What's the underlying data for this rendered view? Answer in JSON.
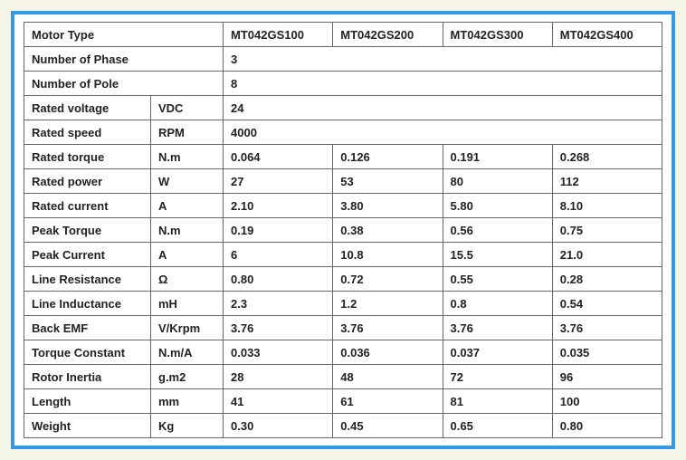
{
  "headers": {
    "motor_type": "Motor Type",
    "models": [
      "MT042GS100",
      "MT042GS200",
      "MT042GS300",
      "MT042GS400"
    ]
  },
  "rows": [
    {
      "label": "Number of Phase",
      "unit": "",
      "unit_merged": true,
      "span_all": true,
      "value": "3"
    },
    {
      "label": "Number of Pole",
      "unit": "",
      "unit_merged": true,
      "span_all": true,
      "value": "8"
    },
    {
      "label": "Rated voltage",
      "unit": "VDC",
      "span_all": true,
      "value": "24"
    },
    {
      "label": "Rated speed",
      "unit": "RPM",
      "span_all": true,
      "value": "4000"
    },
    {
      "label": "Rated torque",
      "unit": "N.m",
      "values": [
        "0.064",
        "0.126",
        "0.191",
        "0.268"
      ]
    },
    {
      "label": "Rated power",
      "unit": "W",
      "values": [
        "27",
        "53",
        "80",
        "112"
      ]
    },
    {
      "label": "Rated current",
      "unit": "A",
      "values": [
        "2.10",
        "3.80",
        "5.80",
        "8.10"
      ]
    },
    {
      "label": "Peak Torque",
      "unit": "N.m",
      "values": [
        "0.19",
        "0.38",
        "0.56",
        "0.75"
      ]
    },
    {
      "label": "Peak Current",
      "unit": "A",
      "values": [
        "6",
        "10.8",
        "15.5",
        "21.0"
      ]
    },
    {
      "label": "Line Resistance",
      "unit": "Ω",
      "values": [
        "0.80",
        "0.72",
        "0.55",
        "0.28"
      ]
    },
    {
      "label": "Line Inductance",
      "unit": "mH",
      "values": [
        "2.3",
        "1.2",
        "0.8",
        "0.54"
      ]
    },
    {
      "label": "Back EMF",
      "unit": "V/Krpm",
      "values": [
        "3.76",
        "3.76",
        "3.76",
        "3.76"
      ]
    },
    {
      "label": "Torque Constant",
      "unit": "N.m/A",
      "values": [
        "0.033",
        "0.036",
        "0.037",
        "0.035"
      ]
    },
    {
      "label": "Rotor Inertia",
      "unit": "g.m2",
      "values": [
        "28",
        "48",
        "72",
        "96"
      ]
    },
    {
      "label": "Length",
      "unit": "mm",
      "values": [
        "41",
        "61",
        "81",
        "100"
      ]
    },
    {
      "label": "Weight",
      "unit": "Kg",
      "values": [
        "0.30",
        "0.45",
        "0.65",
        "0.80"
      ]
    }
  ],
  "style": {
    "border_color": "#3399e6",
    "cell_border": "#666666",
    "background": "#f5f5e8",
    "inner_bg": "#ffffff",
    "font_size": 13,
    "font_weight": "bold",
    "text_color": "#222222"
  }
}
